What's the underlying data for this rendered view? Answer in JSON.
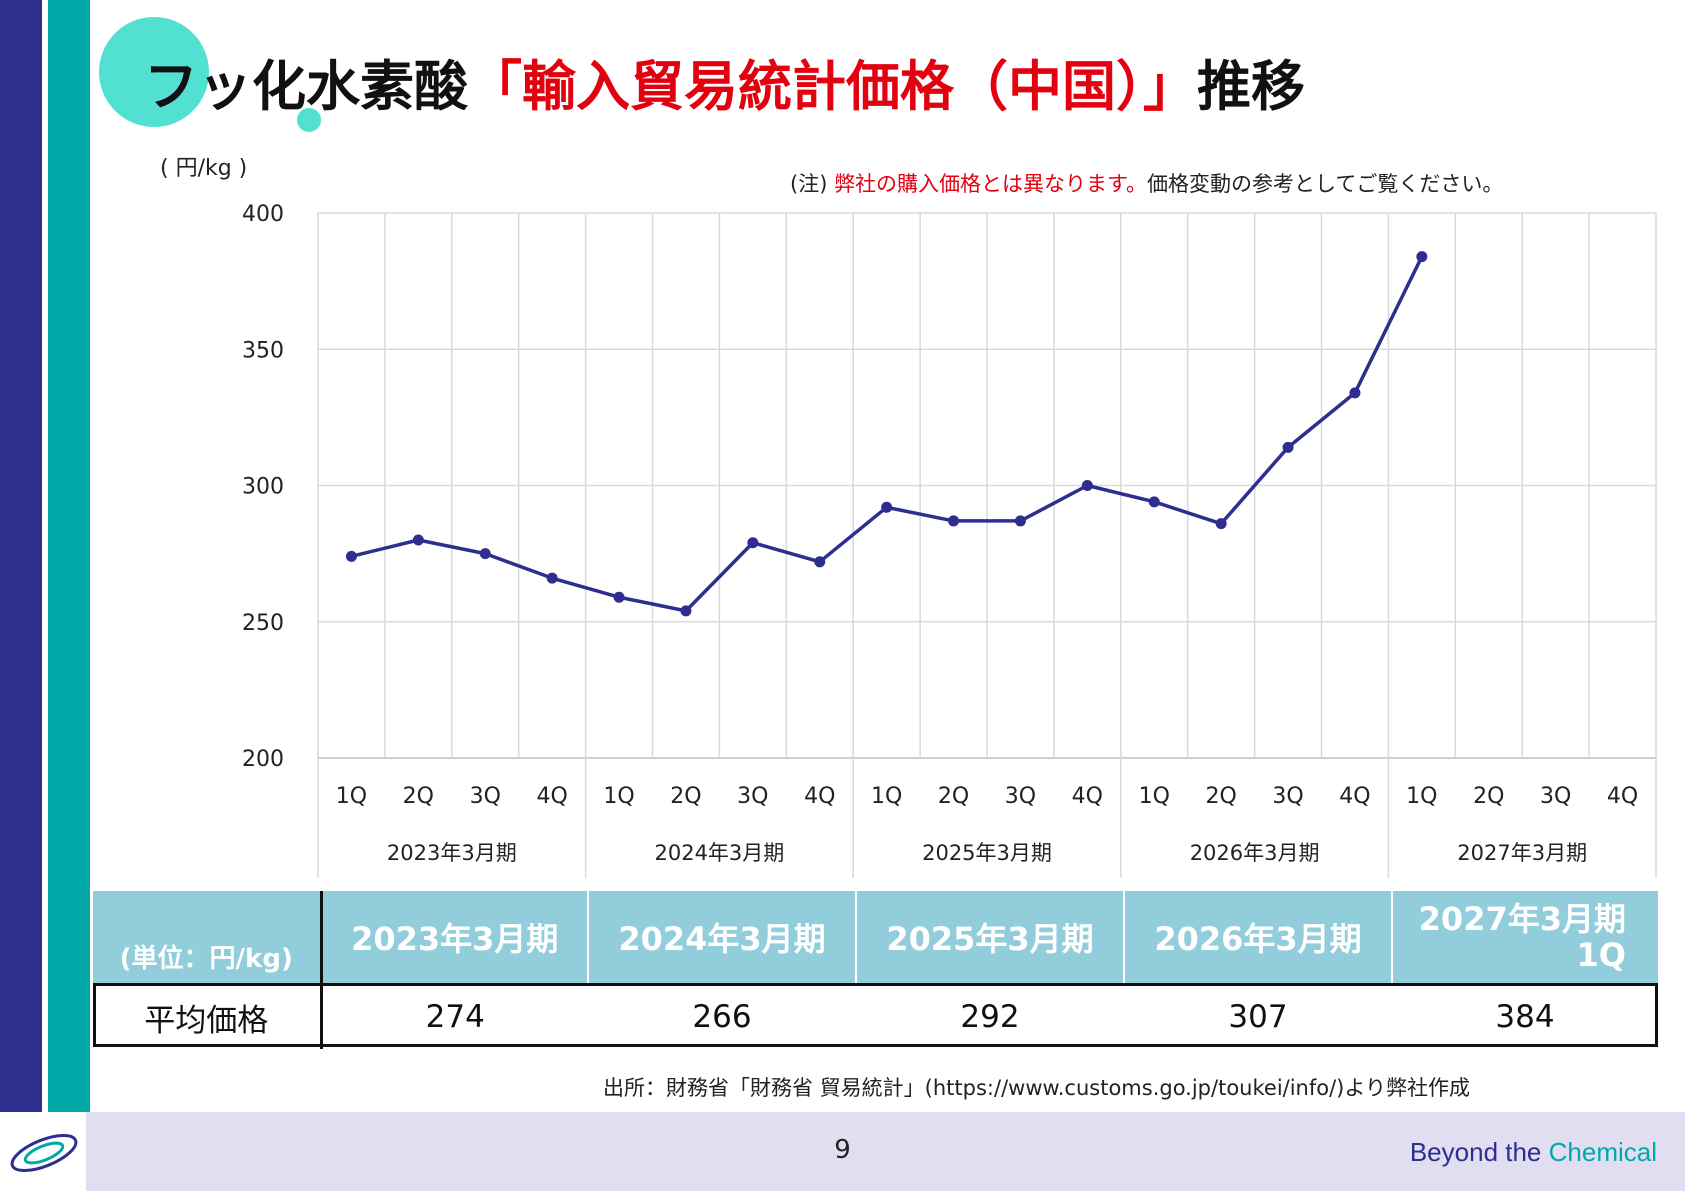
{
  "title": {
    "part1": "フッ化水素酸",
    "part2": "「輸入貿易統計価格（中国）」",
    "part3": "推移"
  },
  "unit_label": "( 円/kg )",
  "note": {
    "prefix": "(注) ",
    "red": "弊社の購入価格とは異なります。",
    "suffix": "価格変動の参考としてご覧ください。"
  },
  "chart_data": {
    "type": "line",
    "ylim": [
      200,
      400
    ],
    "yticks": [
      200,
      250,
      300,
      350,
      400
    ],
    "quarter_labels": [
      "1Q",
      "2Q",
      "3Q",
      "4Q",
      "1Q",
      "2Q",
      "3Q",
      "4Q",
      "1Q",
      "2Q",
      "3Q",
      "4Q",
      "1Q",
      "2Q",
      "3Q",
      "4Q",
      "1Q",
      "2Q",
      "3Q",
      "4Q"
    ],
    "fiscal_years": [
      "2023年3月期",
      "2024年3月期",
      "2025年3月期",
      "2026年3月期",
      "2027年3月期"
    ],
    "series": [
      {
        "values": [
          274,
          280,
          275,
          266,
          259,
          254,
          279,
          272,
          292,
          287,
          287,
          300,
          294,
          286,
          314,
          334,
          384
        ],
        "color": "#2e2e8e"
      }
    ],
    "grid": true
  },
  "table": {
    "unit": "(単位：円/kg)",
    "headers": [
      "2023年3月期",
      "2024年3月期",
      "2025年3月期",
      "2026年3月期",
      "2027年3月期",
      "1Q"
    ],
    "row_label": "平均価格",
    "values": [
      "274",
      "266",
      "292",
      "307",
      "384"
    ]
  },
  "source": "出所：財務省「財務省 貿易統計」(https://www.customs.go.jp/toukei/info/)より弊社作成",
  "footer": {
    "page": "9",
    "brand1": "Beyond the ",
    "brand2": "Chemical"
  },
  "colors": {
    "navy": "#2e2e8e",
    "teal": "#00a8a8",
    "red": "#e3000f",
    "header": "#92cddc"
  }
}
